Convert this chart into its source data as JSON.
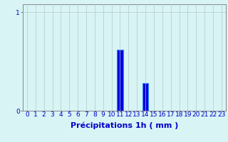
{
  "hours": [
    0,
    1,
    2,
    3,
    4,
    5,
    6,
    7,
    8,
    9,
    10,
    11,
    12,
    13,
    14,
    15,
    16,
    17,
    18,
    19,
    20,
    21,
    22,
    23
  ],
  "values": [
    0,
    0,
    0,
    0,
    0,
    0,
    0,
    0,
    0,
    0,
    0,
    0.62,
    0,
    0,
    0.28,
    0,
    0,
    0,
    0,
    0,
    0,
    0,
    0,
    0
  ],
  "bar_color": "#0000dd",
  "bar_edge_color": "#3388ff",
  "background_color": "#d8f4f4",
  "grid_color": "#b8c8c8",
  "xlabel": "Précipitations 1h ( mm )",
  "xlabel_fontsize": 8,
  "xlabel_color": "#0000cc",
  "ytick_labels": [
    "0",
    "1"
  ],
  "ytick_values": [
    0,
    1
  ],
  "ylim": [
    0,
    1.08
  ],
  "xlim": [
    -0.5,
    23.5
  ],
  "tick_label_color": "#0000cc",
  "tick_label_fontsize": 6.5,
  "spine_color": "#888888"
}
